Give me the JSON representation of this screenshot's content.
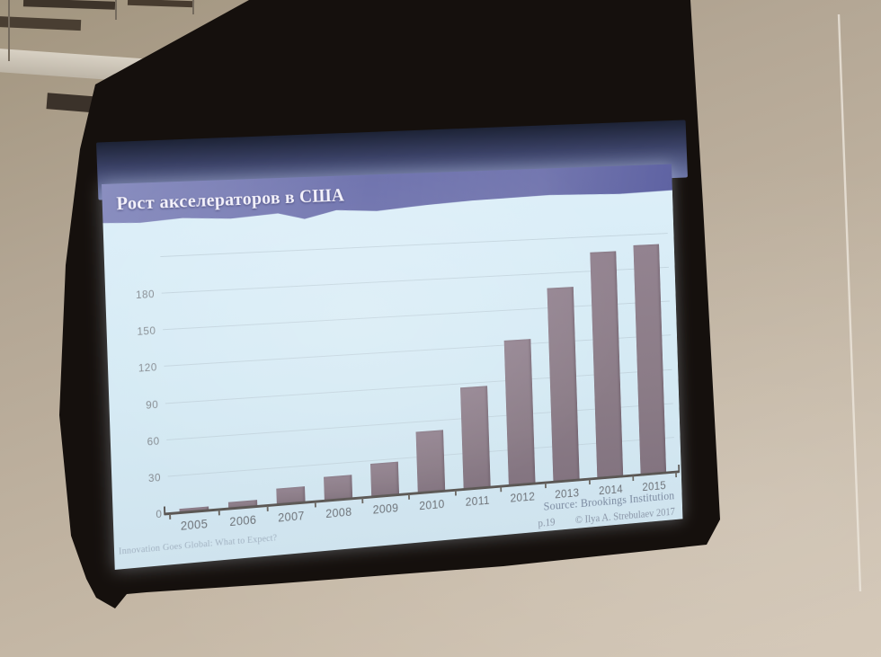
{
  "slide": {
    "title": "Рост акселераторов в США",
    "footer_left": "Innovation Goes Global: What to Expect?",
    "source_line": "Source: Brookings Institution",
    "page_number": "p.19",
    "copyright": "© Ilya A. Strebulaev 2017"
  },
  "chart_data": {
    "type": "bar",
    "title": "Рост акселераторов в США",
    "categories": [
      "2005",
      "2006",
      "2007",
      "2008",
      "2009",
      "2010",
      "2011",
      "2012",
      "2013",
      "2014",
      "2015"
    ],
    "values": [
      3,
      5,
      13,
      20,
      28,
      52,
      87,
      125,
      168,
      197,
      201
    ],
    "xlabel": "",
    "ylabel": "",
    "ylim": [
      0,
      210
    ],
    "yticks": [
      0,
      30,
      60,
      90,
      120,
      150,
      180
    ],
    "ygrid": [
      30,
      60,
      90,
      120,
      150,
      180,
      210
    ],
    "grid": "horizontal",
    "legend": "none",
    "bar_color": "#8d7e89",
    "plot_background": "#d7eaf5"
  },
  "colors": {
    "title_band": "#666aa6",
    "slide_background": "#d7eaf5",
    "bar": "#8d7e89",
    "gridline": "#c3d5df",
    "axis": "#5b5754",
    "screen_black": "#15100d",
    "wall": "#b9ac9b",
    "glow_band": "#4d5580"
  }
}
